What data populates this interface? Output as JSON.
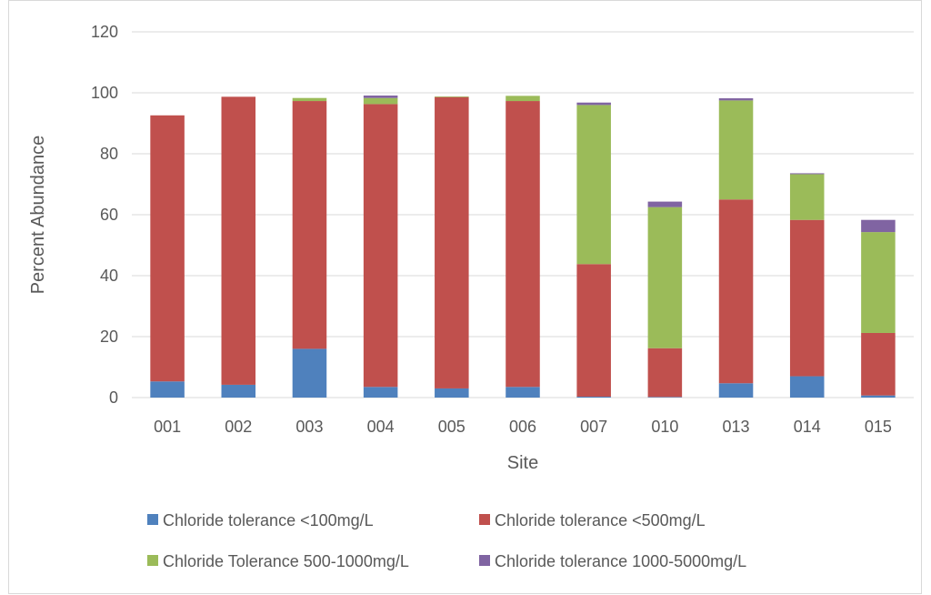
{
  "chart_data": {
    "type": "bar",
    "stacked": true,
    "title": "",
    "xlabel": "Site",
    "ylabel": "Percent Abundance",
    "ylim": [
      0,
      120
    ],
    "yticks": [
      0,
      20,
      40,
      60,
      80,
      100,
      120
    ],
    "grid": true,
    "legend_position": "bottom",
    "categories": [
      "001",
      "002",
      "003",
      "004",
      "005",
      "006",
      "007",
      "010",
      "013",
      "014",
      "015"
    ],
    "series": [
      {
        "name": "Chloride tolerance <100mg/L",
        "color": "#4f81bd",
        "values": [
          5.3,
          4.2,
          16.0,
          3.5,
          3.0,
          3.5,
          0.3,
          0.2,
          4.7,
          7.0,
          0.7
        ]
      },
      {
        "name": "Chloride tolerance <500mg/L",
        "color": "#c0504d",
        "values": [
          87.3,
          94.5,
          81.3,
          92.8,
          95.6,
          93.8,
          43.5,
          16.0,
          60.3,
          51.3,
          20.5
        ]
      },
      {
        "name": "Chloride Tolerance 500-1000mg/L",
        "color": "#9bbb59",
        "values": [
          0,
          0,
          1.0,
          2.0,
          0.2,
          1.7,
          52.2,
          46.3,
          32.5,
          15.0,
          33.1
        ]
      },
      {
        "name": "Chloride tolerance 1000-5000mg/L",
        "color": "#8064a2",
        "values": [
          0,
          0,
          0,
          0.8,
          0,
          0,
          0.8,
          1.8,
          0.7,
          0.3,
          4.0
        ]
      }
    ]
  }
}
